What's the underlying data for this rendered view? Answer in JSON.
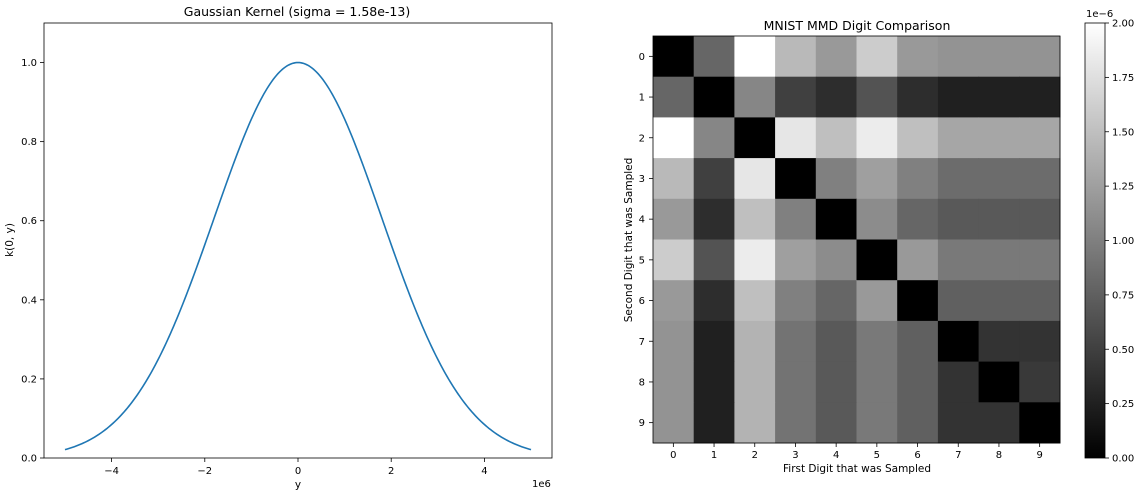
{
  "chart_data": [
    {
      "type": "line",
      "title": "Gaussian Kernel (sigma = 1.58e-13)",
      "xlabel": "y",
      "ylabel": "k(0, y)",
      "x_offset_label": "1e6",
      "xlim": [
        -5.45,
        5.45
      ],
      "ylim": [
        0,
        1.1
      ],
      "x_domain": [
        -5,
        5
      ],
      "x_scale": 1000000,
      "gaussian_std": 1.8,
      "xticks": [
        -4,
        -2,
        0,
        2,
        4
      ],
      "xtick_labels": [
        "−4",
        "−2",
        "0",
        "2",
        "4"
      ],
      "yticks": [
        0.0,
        0.2,
        0.4,
        0.6,
        0.8,
        1.0
      ],
      "ytick_labels": [
        "0.0",
        "0.2",
        "0.4",
        "0.6",
        "0.8",
        "1.0"
      ],
      "line_color": "#1f77b4",
      "grid": false
    },
    {
      "type": "heatmap",
      "title": "MNIST MMD Digit Comparison",
      "xlabel": "First Digit that was Sampled",
      "ylabel": "Second Digit that was Sampled",
      "x_categories": [
        "0",
        "1",
        "2",
        "3",
        "4",
        "5",
        "6",
        "7",
        "8",
        "9"
      ],
      "y_categories": [
        "0",
        "1",
        "2",
        "3",
        "4",
        "5",
        "6",
        "7",
        "8",
        "9"
      ],
      "colormap": "gray",
      "vmin": 0,
      "vmax": 2.0,
      "values_unit": "1e-6",
      "values": [
        [
          0.0,
          0.8,
          2.0,
          1.45,
          1.2,
          1.6,
          1.2,
          1.15,
          1.15,
          1.15
        ],
        [
          0.8,
          0.0,
          1.05,
          0.5,
          0.35,
          0.65,
          0.35,
          0.25,
          0.25,
          0.25
        ],
        [
          2.0,
          1.05,
          0.0,
          1.8,
          1.5,
          1.85,
          1.5,
          1.3,
          1.3,
          1.3
        ],
        [
          1.45,
          0.5,
          1.8,
          0.0,
          1.0,
          1.25,
          1.0,
          0.85,
          0.85,
          0.85
        ],
        [
          1.2,
          0.35,
          1.5,
          1.0,
          0.0,
          1.1,
          0.8,
          0.7,
          0.7,
          0.7
        ],
        [
          1.6,
          0.65,
          1.85,
          1.25,
          1.1,
          0.0,
          1.2,
          0.95,
          0.95,
          0.95
        ],
        [
          1.2,
          0.35,
          1.5,
          1.0,
          0.8,
          1.2,
          0.0,
          0.75,
          0.75,
          0.75
        ],
        [
          1.15,
          0.25,
          1.4,
          0.9,
          0.7,
          0.95,
          0.75,
          0.0,
          0.4,
          0.4
        ],
        [
          1.15,
          0.25,
          1.4,
          0.9,
          0.7,
          0.95,
          0.75,
          0.4,
          0.0,
          0.45
        ],
        [
          1.15,
          0.25,
          1.4,
          0.9,
          0.7,
          0.95,
          0.75,
          0.4,
          0.4,
          0.0
        ]
      ],
      "colorbar": {
        "ticks": [
          0.0,
          0.25,
          0.5,
          0.75,
          1.0,
          1.25,
          1.5,
          1.75,
          2.0
        ],
        "tick_labels": [
          "0.00",
          "0.25",
          "0.50",
          "0.75",
          "1.00",
          "1.25",
          "1.50",
          "1.75",
          "2.00"
        ],
        "offset_label": "1e−6"
      }
    }
  ]
}
